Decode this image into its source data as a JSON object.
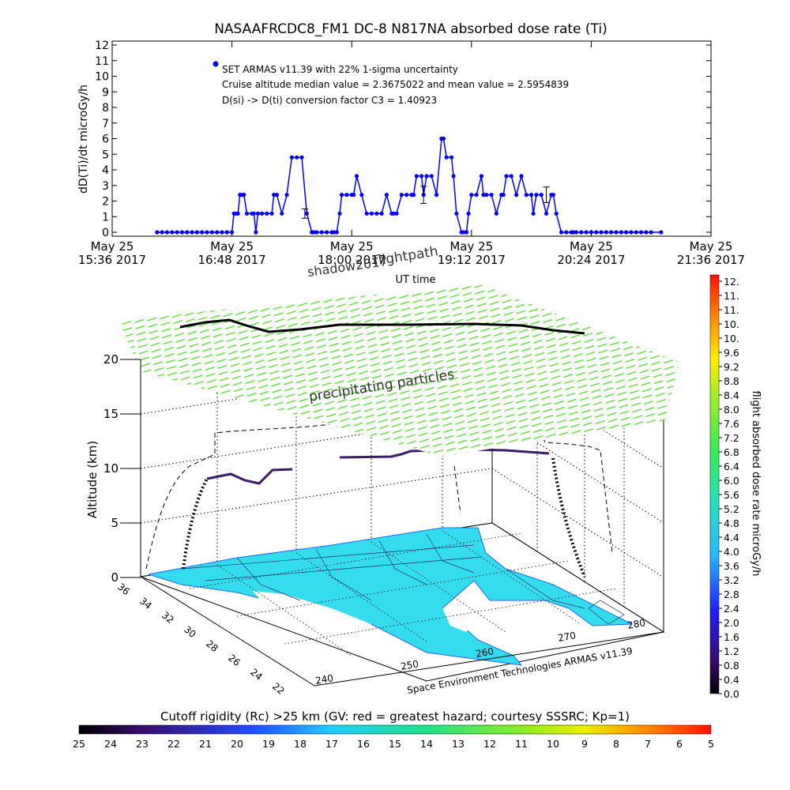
{
  "chart_data": [
    {
      "type": "line",
      "title": "NASAAFRCDC8_FM1 DC-8   N817NA absorbed dose rate (Ti)",
      "xlabel": "UT time",
      "ylabel": "dD(Ti)/dt microGy/h",
      "ylim": [
        0,
        12
      ],
      "xlim_hours": [
        15.6,
        21.6
      ],
      "y_ticks": [
        "0",
        "1",
        "2",
        "3",
        "4",
        "5",
        "6",
        "7",
        "8",
        "9",
        "10",
        "11",
        "12"
      ],
      "x_ticks": [
        {
          "date": "May 25",
          "time": "15:36 2017",
          "hour": 15.6
        },
        {
          "date": "May 25",
          "time": "16:48 2017",
          "hour": 16.8
        },
        {
          "date": "May 25",
          "time": "18:00 2017",
          "hour": 18.0
        },
        {
          "date": "May 25",
          "time": "19:12 2017",
          "hour": 19.2
        },
        {
          "date": "May 25",
          "time": "20:24 2017",
          "hour": 20.4
        },
        {
          "date": "May 25",
          "time": "21:36 2017",
          "hour": 21.6
        }
      ],
      "annotations": [
        "SET ARMAS v11.39 with 22% 1-sigma uncertainty",
        "Cruise altitude median value = 2.3675022 and mean value = 2.5954839",
        "D(si) -> D(ti) conversion factor C3 = 1.40923"
      ],
      "series_color": "#0000ff",
      "series": [
        {
          "x": [
            16.05,
            16.1,
            16.15,
            16.2,
            16.25,
            16.3,
            16.35,
            16.4,
            16.45,
            16.5,
            16.55,
            16.6,
            16.65,
            16.7,
            16.75,
            16.8,
            16.82,
            16.84,
            16.86,
            16.88,
            16.9,
            16.92,
            16.95,
            17.0,
            17.02,
            17.04,
            17.06,
            17.1,
            17.15,
            17.2,
            17.22,
            17.25,
            17.3,
            17.35,
            17.4,
            17.45,
            17.5,
            17.55,
            17.6,
            17.62,
            17.65,
            17.7,
            17.75,
            17.8,
            17.82,
            17.85,
            17.88,
            17.9,
            17.95,
            18.0,
            18.02,
            18.05,
            18.1,
            18.15,
            18.2,
            18.25,
            18.3,
            18.35,
            18.4,
            18.42,
            18.45,
            18.5,
            18.55,
            18.6,
            18.62,
            18.65,
            18.7,
            18.72,
            18.75,
            18.8,
            18.85,
            18.9,
            18.92,
            18.95,
            19.0,
            19.02,
            19.05,
            19.1,
            19.12,
            19.15,
            19.17,
            19.2,
            19.25,
            19.3,
            19.32,
            19.35,
            19.4,
            19.45,
            19.5,
            19.52,
            19.55,
            19.6,
            19.65,
            19.7,
            19.75,
            19.8,
            19.82,
            19.85,
            19.9,
            19.95,
            20.0,
            20.02,
            20.05,
            20.1,
            20.15,
            20.2,
            20.22,
            20.25,
            20.3,
            20.35,
            20.4,
            20.45,
            20.5,
            20.55,
            20.6,
            20.65,
            20.7,
            20.75,
            20.8,
            20.85,
            20.9,
            20.95,
            21.0,
            21.1
          ],
          "y": [
            0,
            0,
            0,
            0,
            0,
            0,
            0,
            0,
            0,
            0,
            0,
            0,
            0,
            0,
            0,
            0,
            1.2,
            1.2,
            1.2,
            2.4,
            2.4,
            2.4,
            1.2,
            1.2,
            1.2,
            0,
            1.2,
            1.2,
            1.2,
            1.2,
            2.4,
            2.4,
            1.2,
            2.4,
            4.8,
            4.8,
            4.8,
            1.2,
            0,
            0,
            0,
            0,
            0,
            0,
            0,
            0,
            1.2,
            2.4,
            2.4,
            2.4,
            2.4,
            3.6,
            2.4,
            1.2,
            1.2,
            1.2,
            1.2,
            2.4,
            1.2,
            1.2,
            1.2,
            2.4,
            2.4,
            2.4,
            2.4,
            3.6,
            3.6,
            2.4,
            3.6,
            3.6,
            2.4,
            6,
            6,
            4.8,
            4.8,
            3.6,
            1.2,
            0,
            0,
            0,
            1.2,
            2.4,
            2.4,
            3.6,
            2.4,
            2.4,
            2.4,
            1.2,
            2.4,
            2.4,
            3.6,
            3.6,
            2.4,
            3.6,
            2.4,
            2.4,
            1.2,
            2.4,
            2.4,
            1.2,
            2.4,
            2.4,
            1.2,
            0,
            0,
            0,
            0,
            0,
            0,
            0,
            0,
            0,
            0,
            0,
            0,
            0,
            0,
            0,
            0,
            0,
            0,
            0,
            0,
            0
          ],
          "error_bars": [
            {
              "x": 17.53,
              "y": 1.2,
              "err": 0.3
            },
            {
              "x": 18.72,
              "y": 2.4,
              "err": 0.55
            },
            {
              "x": 19.95,
              "y": 2.4,
              "err": 0.5
            }
          ]
        }
      ]
    },
    {
      "type": "scatter",
      "zlabel": "Altitude (km)",
      "z_ticks": [
        "0",
        "5",
        "10",
        "15",
        "20"
      ],
      "lat_ticks": [
        "36",
        "34",
        "32",
        "30",
        "28",
        "26",
        "24",
        "22"
      ],
      "lon_ticks": [
        "240",
        "250",
        "260",
        "270",
        "280"
      ],
      "annotations": [
        "shadow2017",
        "flightpath",
        "precipitating particles"
      ],
      "credit": "Space Environment Technologies ARMAS v11.39"
    }
  ],
  "colorbar_right": {
    "label": "flight absorbed dose rate microGy/h",
    "ticks": [
      "12.",
      "11.",
      "11.",
      "10.",
      "10.",
      "9.6",
      "9.2",
      "8.8",
      "8.4",
      "8.0",
      "7.6",
      "7.2",
      "6.8",
      "6.4",
      "6.0",
      "5.6",
      "5.2",
      "4.8",
      "4.4",
      "4.0",
      "3.6",
      "3.2",
      "2.8",
      "2.4",
      "2.0",
      "1.6",
      "1.2",
      "0.8",
      "0.4",
      "0.0"
    ]
  },
  "colorbar_bottom": {
    "label": "Cutoff rigidity (Rc) >25 km (GV: red = greatest hazard; courtesy SSSRC; Kp=1)",
    "ticks": [
      "25",
      "24",
      "23",
      "22",
      "21",
      "20",
      "19",
      "18",
      "17",
      "16",
      "15",
      "14",
      "13",
      "12",
      "11",
      "10",
      "9",
      "8",
      "7",
      "6",
      "5"
    ]
  },
  "colors": {
    "series": "#0000ff",
    "cutoff_surface": "#33ddee",
    "top_layer": "#66dd44",
    "flight_track": "#000000"
  }
}
